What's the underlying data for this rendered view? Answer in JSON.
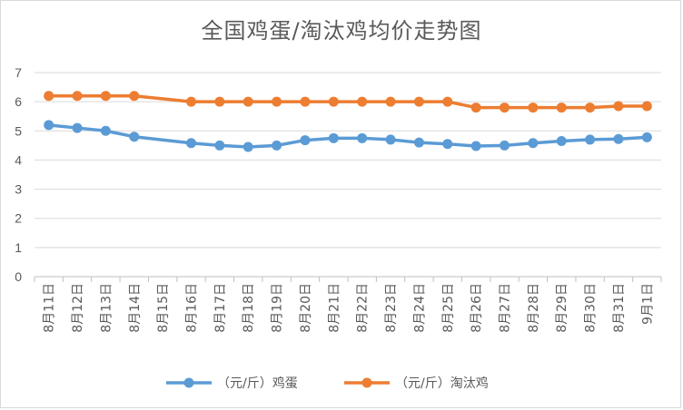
{
  "chart_data": {
    "type": "line",
    "title": "全国鸡蛋/淘汰鸡均价走势图",
    "categories": [
      "8月11日",
      "8月12日",
      "8月13日",
      "8月14日",
      "8月15日",
      "8月16日",
      "8月17日",
      "8月18日",
      "8月19日",
      "8月20日",
      "8月21日",
      "8月22日",
      "8月23日",
      "8月24日",
      "8月25日",
      "8月26日",
      "8月27日",
      "8月28日",
      "8月29日",
      "8月30日",
      "8月31日",
      "9月1日"
    ],
    "series": [
      {
        "name": "（元/斤）鸡蛋",
        "color": "#5b9bd5",
        "values": [
          5.2,
          5.1,
          5.0,
          4.8,
          null,
          4.58,
          4.5,
          4.45,
          4.5,
          4.68,
          4.75,
          4.75,
          4.7,
          4.6,
          4.55,
          4.48,
          4.5,
          4.58,
          4.65,
          4.7,
          4.72,
          4.78
        ]
      },
      {
        "name": "（元/斤）淘汰鸡",
        "color": "#ed7d31",
        "values": [
          6.2,
          6.2,
          6.2,
          6.2,
          null,
          6.0,
          6.0,
          6.0,
          6.0,
          6.0,
          6.0,
          6.0,
          6.0,
          6.0,
          6.0,
          5.8,
          5.8,
          5.8,
          5.8,
          5.8,
          5.85,
          5.85
        ]
      }
    ],
    "ylim": [
      0,
      7
    ],
    "yticks": [
      0,
      1,
      2,
      3,
      4,
      5,
      6,
      7
    ],
    "grid": true,
    "legend": "bottom"
  }
}
